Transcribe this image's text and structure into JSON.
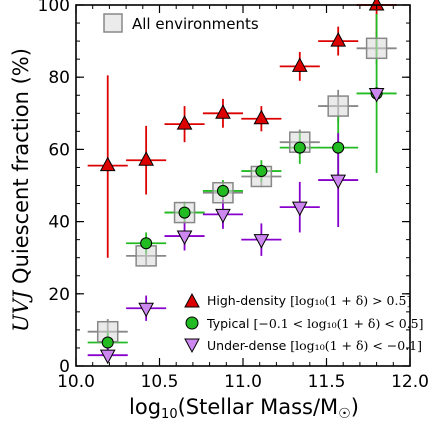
{
  "chart_data": {
    "type": "scatter",
    "xlabel": "log10(Stellar Mass/M☉)",
    "ylabel": "UVJ Quiescent fraction (%)",
    "xlim": [
      10.0,
      12.0
    ],
    "ylim": [
      0,
      100
    ],
    "xticks": [
      "10.0",
      "10.5",
      "11.0",
      "11.5",
      "12.0"
    ],
    "yticks": [
      "0",
      "20",
      "40",
      "60",
      "80",
      "100"
    ],
    "grid": false,
    "legend_placement": "top-left and bottom-right",
    "series": [
      {
        "name": "All environments",
        "marker": "square",
        "color": "#888888",
        "points": [
          {
            "x": 10.19,
            "y": 9.5,
            "xerr": 0.12,
            "yerr_lo": 3.5,
            "yerr_hi": 3.5
          },
          {
            "x": 10.42,
            "y": 30.5,
            "xerr": 0.12,
            "yerr_lo": 2.5,
            "yerr_hi": 2.5
          },
          {
            "x": 10.65,
            "y": 42.5,
            "xerr": 0.12,
            "yerr_lo": 2.5,
            "yerr_hi": 2.5
          },
          {
            "x": 10.88,
            "y": 48.0,
            "xerr": 0.12,
            "yerr_lo": 2.5,
            "yerr_hi": 2.5
          },
          {
            "x": 11.11,
            "y": 52.5,
            "xerr": 0.12,
            "yerr_lo": 3.0,
            "yerr_hi": 3.0
          },
          {
            "x": 11.34,
            "y": 62.0,
            "xerr": 0.12,
            "yerr_lo": 3.5,
            "yerr_hi": 3.5
          },
          {
            "x": 11.57,
            "y": 72.0,
            "xerr": 0.12,
            "yerr_lo": 4.5,
            "yerr_hi": 4.5
          },
          {
            "x": 11.8,
            "y": 88.0,
            "xerr": 0.12,
            "yerr_lo": 4.5,
            "yerr_hi": 4.5
          }
        ]
      },
      {
        "name": "High-density [log10(1+δ) > 0.5]",
        "marker": "triangle-up",
        "color": "#dd0000",
        "points": [
          {
            "x": 10.19,
            "y": 55.5,
            "xerr": 0.12,
            "yerr_lo": 25.5,
            "yerr_hi": 25.0
          },
          {
            "x": 10.42,
            "y": 57.0,
            "xerr": 0.12,
            "yerr_lo": 9.5,
            "yerr_hi": 9.5
          },
          {
            "x": 10.65,
            "y": 67.0,
            "xerr": 0.12,
            "yerr_lo": 5.0,
            "yerr_hi": 5.0
          },
          {
            "x": 10.88,
            "y": 70.0,
            "xerr": 0.12,
            "yerr_lo": 4.0,
            "yerr_hi": 4.0
          },
          {
            "x": 11.11,
            "y": 68.5,
            "xerr": 0.12,
            "yerr_lo": 3.5,
            "yerr_hi": 3.5
          },
          {
            "x": 11.34,
            "y": 83.0,
            "xerr": 0.12,
            "yerr_lo": 4.0,
            "yerr_hi": 4.0
          },
          {
            "x": 11.57,
            "y": 90.0,
            "xerr": 0.12,
            "yerr_lo": 4.0,
            "yerr_hi": 4.0
          },
          {
            "x": 11.8,
            "y": 100.0,
            "xerr": 0.12,
            "yerr_lo": 14.0,
            "yerr_hi": 0
          }
        ]
      },
      {
        "name": "Typical [−0.1 < log10(1+δ) < 0.5]",
        "marker": "circle",
        "color": "#22bb22",
        "points": [
          {
            "x": 10.19,
            "y": 6.5,
            "xerr": 0.12,
            "yerr_lo": 3.0,
            "yerr_hi": 3.0
          },
          {
            "x": 10.42,
            "y": 34.0,
            "xerr": 0.12,
            "yerr_lo": 3.0,
            "yerr_hi": 3.0
          },
          {
            "x": 10.65,
            "y": 42.5,
            "xerr": 0.12,
            "yerr_lo": 3.0,
            "yerr_hi": 3.0
          },
          {
            "x": 10.88,
            "y": 48.5,
            "xerr": 0.12,
            "yerr_lo": 3.0,
            "yerr_hi": 3.0
          },
          {
            "x": 11.11,
            "y": 54.0,
            "xerr": 0.12,
            "yerr_lo": 3.0,
            "yerr_hi": 3.0
          },
          {
            "x": 11.34,
            "y": 60.5,
            "xerr": 0.12,
            "yerr_lo": 4.5,
            "yerr_hi": 4.5
          },
          {
            "x": 11.57,
            "y": 60.5,
            "xerr": 0.12,
            "yerr_lo": 9.0,
            "yerr_hi": 9.0
          },
          {
            "x": 11.8,
            "y": 75.5,
            "xerr": 0.12,
            "yerr_lo": 22.0,
            "yerr_hi": 22.0
          }
        ]
      },
      {
        "name": "Under-dense [log10(1+δ) < −0.1]",
        "marker": "triangle-down",
        "color": "#8800cc",
        "points": [
          {
            "x": 10.19,
            "y": 3.0,
            "xerr": 0.12,
            "yerr_lo": 2.0,
            "yerr_hi": 2.0
          },
          {
            "x": 10.42,
            "y": 16.0,
            "xerr": 0.12,
            "yerr_lo": 3.5,
            "yerr_hi": 3.5
          },
          {
            "x": 10.65,
            "y": 36.0,
            "xerr": 0.12,
            "yerr_lo": 4.0,
            "yerr_hi": 4.0
          },
          {
            "x": 10.88,
            "y": 42.0,
            "xerr": 0.12,
            "yerr_lo": 4.0,
            "yerr_hi": 4.0
          },
          {
            "x": 11.11,
            "y": 35.0,
            "xerr": 0.12,
            "yerr_lo": 4.5,
            "yerr_hi": 4.5
          },
          {
            "x": 11.34,
            "y": 44.0,
            "xerr": 0.12,
            "yerr_lo": 7.0,
            "yerr_hi": 7.0
          },
          {
            "x": 11.57,
            "y": 51.5,
            "xerr": 0.12,
            "yerr_lo": 13.0,
            "yerr_hi": 13.0
          },
          {
            "x": 11.8,
            "y": 75.5,
            "xerr": 0,
            "yerr_lo": 0,
            "yerr_hi": 0
          }
        ]
      }
    ]
  },
  "legend": {
    "all": "All environments",
    "high_name": "High-density",
    "high_cond": "[log₁₀(1 + δ) > 0.5]",
    "typical_name": "Typical",
    "typical_cond": "[−0.1 < log₁₀(1 + δ) < 0.5]",
    "under_name": "Under-dense",
    "under_cond": "[log₁₀(1 + δ) < −0.1]"
  }
}
